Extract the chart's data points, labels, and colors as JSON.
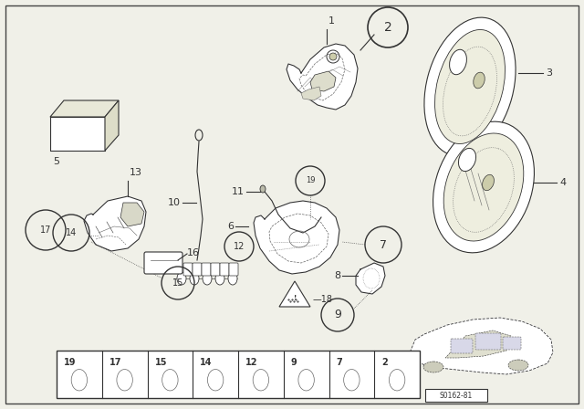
{
  "bg_color": "#f0f0e8",
  "dark": "#333333",
  "gray": "#666666",
  "lw": 0.8,
  "font_size": 8,
  "bottom_items": [
    {
      "num": "19",
      "xf": 0.115
    },
    {
      "num": "17",
      "xf": 0.195
    },
    {
      "num": "15",
      "xf": 0.265
    },
    {
      "num": "14",
      "xf": 0.335
    },
    {
      "num": "12",
      "xf": 0.405
    },
    {
      "num": "9",
      "xf": 0.475
    },
    {
      "num": "7",
      "xf": 0.545
    },
    {
      "num": "2",
      "xf": 0.615
    }
  ],
  "code_text": "S0162-81"
}
